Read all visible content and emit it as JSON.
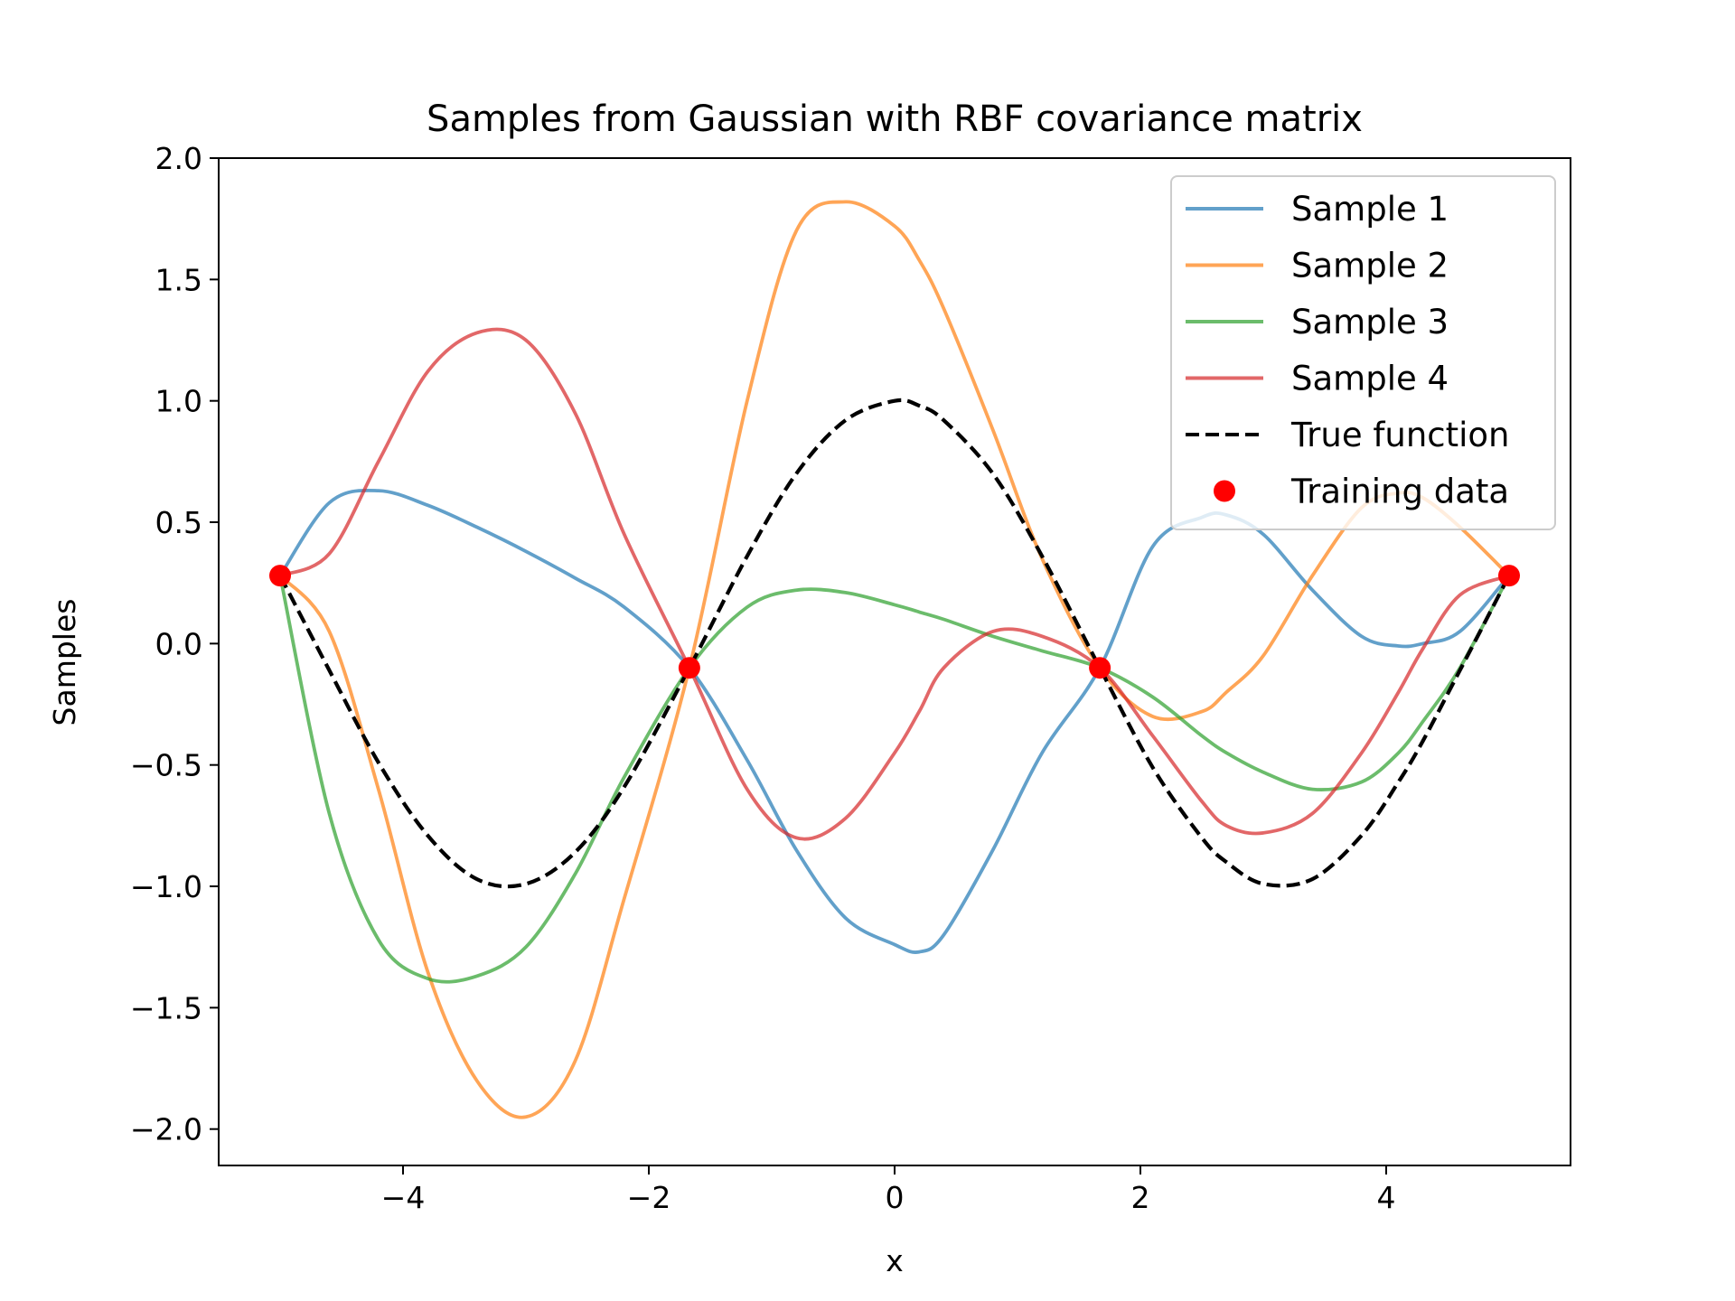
{
  "chart_data": {
    "type": "line",
    "title": "Samples from Gaussian with RBF covariance matrix",
    "xlabel": "x",
    "ylabel": "Samples",
    "xlim": [
      -5.5,
      5.5
    ],
    "ylim": [
      -2.15,
      2.0
    ],
    "xticks": [
      -4,
      -2,
      0,
      2,
      4
    ],
    "xtick_labels": [
      "−4",
      "−2",
      "0",
      "2",
      "4"
    ],
    "yticks": [
      2.0,
      1.5,
      1.0,
      0.5,
      0.0,
      -0.5,
      -1.0,
      -1.5,
      -2.0
    ],
    "ytick_labels": [
      "2.0",
      "1.5",
      "1.0",
      "0.5",
      "0.0",
      "−0.5",
      "−1.0",
      "−1.5",
      "−2.0"
    ],
    "grid": false,
    "legend_position": "top-right",
    "x": [
      -5.0,
      -4.6,
      -4.2,
      -3.8,
      -3.4,
      -3.0,
      -2.6,
      -2.2,
      -1.67,
      -1.2,
      -0.8,
      -0.4,
      0.0,
      0.2,
      0.4,
      0.8,
      1.2,
      1.67,
      2.1,
      2.5,
      2.7,
      3.0,
      3.4,
      3.8,
      4.1,
      4.3,
      4.6,
      5.0
    ],
    "series": [
      {
        "name": "Sample 1",
        "color": "#1f77b4",
        "style": "solid",
        "values": [
          0.28,
          0.58,
          0.63,
          0.57,
          0.48,
          0.38,
          0.27,
          0.15,
          -0.1,
          -0.48,
          -0.85,
          -1.13,
          -1.24,
          -1.27,
          -1.2,
          -0.85,
          -0.45,
          -0.1,
          0.4,
          0.52,
          0.53,
          0.45,
          0.22,
          0.03,
          -0.01,
          0.0,
          0.05,
          0.28
        ]
      },
      {
        "name": "Sample 2",
        "color": "#ff7f0e",
        "style": "solid",
        "values": [
          0.28,
          0.05,
          -0.6,
          -1.35,
          -1.8,
          -1.95,
          -1.72,
          -1.05,
          -0.1,
          1.0,
          1.7,
          1.82,
          1.72,
          1.58,
          1.38,
          0.88,
          0.35,
          -0.1,
          -0.3,
          -0.28,
          -0.2,
          -0.05,
          0.28,
          0.56,
          0.62,
          0.6,
          0.48,
          0.28
        ]
      },
      {
        "name": "Sample 3",
        "color": "#2ca02c",
        "style": "solid",
        "values": [
          0.28,
          -0.7,
          -1.22,
          -1.38,
          -1.37,
          -1.25,
          -0.95,
          -0.55,
          -0.1,
          0.15,
          0.22,
          0.21,
          0.16,
          0.13,
          0.1,
          0.03,
          -0.03,
          -0.1,
          -0.22,
          -0.38,
          -0.45,
          -0.53,
          -0.6,
          -0.57,
          -0.45,
          -0.32,
          -0.1,
          0.28
        ]
      },
      {
        "name": "Sample 4",
        "color": "#d62728",
        "style": "solid",
        "values": [
          0.28,
          0.37,
          0.75,
          1.12,
          1.28,
          1.25,
          0.95,
          0.45,
          -0.1,
          -0.6,
          -0.8,
          -0.72,
          -0.45,
          -0.28,
          -0.1,
          0.05,
          0.03,
          -0.1,
          -0.38,
          -0.65,
          -0.75,
          -0.78,
          -0.7,
          -0.45,
          -0.2,
          -0.02,
          0.2,
          0.28
        ]
      },
      {
        "name": "True function",
        "color": "#000000",
        "style": "dashed",
        "values": [
          0.28,
          -0.11,
          -0.49,
          -0.79,
          -0.97,
          -0.99,
          -0.86,
          -0.59,
          -0.1,
          0.36,
          0.7,
          0.92,
          1.0,
          0.98,
          0.92,
          0.7,
          0.36,
          -0.1,
          -0.51,
          -0.8,
          -0.9,
          -0.99,
          -0.97,
          -0.79,
          -0.57,
          -0.4,
          -0.11,
          0.28
        ]
      }
    ],
    "scatter": {
      "name": "Training data",
      "color": "#ff0000",
      "x": [
        -5.0,
        -1.67,
        1.67,
        5.0
      ],
      "y": [
        0.28,
        -0.1,
        -0.1,
        0.28
      ]
    }
  }
}
